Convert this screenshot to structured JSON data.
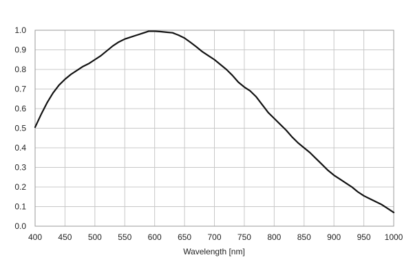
{
  "chart_data": {
    "type": "line",
    "title": "",
    "xlabel": "Wavelength [nm]",
    "ylabel": "",
    "xlim": [
      400,
      1000
    ],
    "ylim": [
      0.0,
      1.0
    ],
    "grid": true,
    "legend": "none",
    "x_ticks": [
      "400",
      "450",
      "500",
      "550",
      "600",
      "650",
      "700",
      "750",
      "800",
      "850",
      "900",
      "950",
      "1000"
    ],
    "y_ticks": [
      "0.0",
      "0.1",
      "0.2",
      "0.3",
      "0.4",
      "0.5",
      "0.6",
      "0.7",
      "0.8",
      "0.9",
      "1.0"
    ],
    "series": [
      {
        "x": [
          400,
          410,
          420,
          430,
          440,
          450,
          460,
          470,
          480,
          490,
          500,
          510,
          520,
          530,
          540,
          550,
          560,
          570,
          580,
          590,
          600,
          610,
          620,
          630,
          640,
          650,
          660,
          670,
          680,
          690,
          700,
          710,
          720,
          730,
          740,
          750,
          760,
          770,
          780,
          790,
          800,
          810,
          820,
          830,
          840,
          850,
          860,
          870,
          880,
          890,
          900,
          910,
          920,
          930,
          940,
          950,
          960,
          970,
          980,
          990,
          1000
        ],
        "y": [
          0.505,
          0.57,
          0.63,
          0.68,
          0.72,
          0.75,
          0.775,
          0.795,
          0.815,
          0.83,
          0.85,
          0.87,
          0.895,
          0.92,
          0.94,
          0.955,
          0.965,
          0.975,
          0.985,
          0.995,
          0.995,
          0.993,
          0.99,
          0.987,
          0.975,
          0.96,
          0.938,
          0.915,
          0.89,
          0.87,
          0.85,
          0.825,
          0.8,
          0.77,
          0.735,
          0.71,
          0.69,
          0.66,
          0.62,
          0.58,
          0.55,
          0.52,
          0.49,
          0.455,
          0.425,
          0.4,
          0.375,
          0.345,
          0.315,
          0.285,
          0.26,
          0.24,
          0.22,
          0.2,
          0.175,
          0.155,
          0.14,
          0.125,
          0.11,
          0.09,
          0.07
        ]
      }
    ],
    "colors": {
      "line": "#111111",
      "grid": "#c8c8c8",
      "axis": "#9a9a9a",
      "text": "#222222"
    }
  }
}
